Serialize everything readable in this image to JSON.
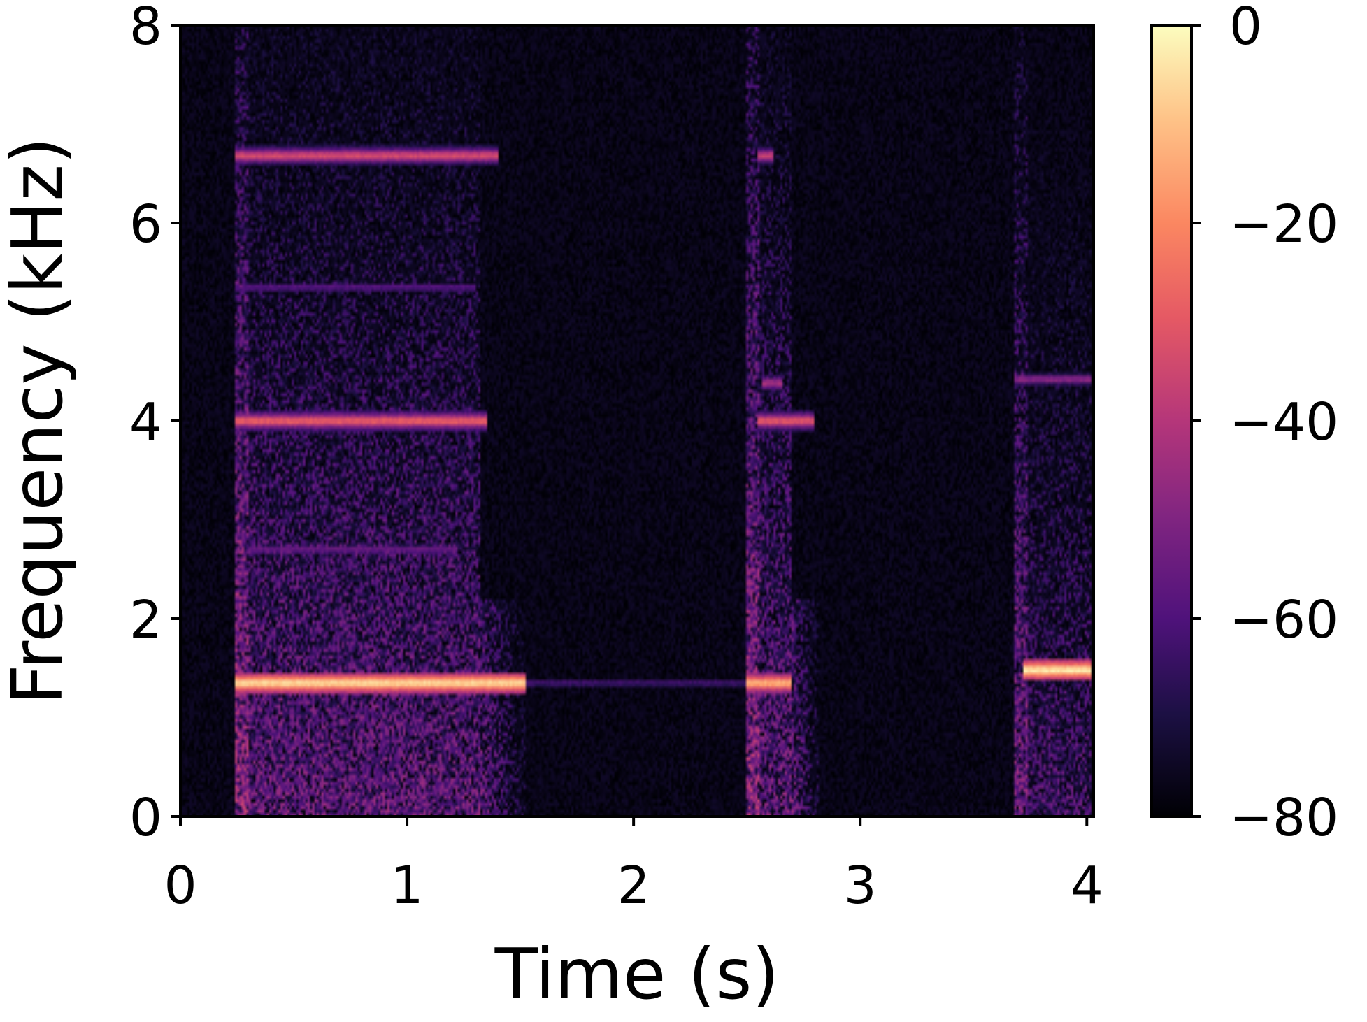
{
  "chart_data": {
    "type": "heatmap",
    "title": "",
    "xlabel": "Time (s)",
    "ylabel": "Frequency (kHz)",
    "xlim": [
      0,
      4.03
    ],
    "ylim": [
      0,
      8
    ],
    "x_ticks": [
      0,
      1,
      2,
      3,
      4
    ],
    "x_tick_labels": [
      "0",
      "1",
      "2",
      "3",
      "4"
    ],
    "y_ticks": [
      0,
      2,
      4,
      6,
      8
    ],
    "y_tick_labels": [
      "0",
      "2",
      "4",
      "6",
      "8"
    ],
    "colormap": "magma",
    "colorbar": {
      "range": [
        -80,
        0
      ],
      "ticks": [
        0,
        -20,
        -40,
        -60,
        -80
      ],
      "tick_labels": [
        "0",
        "−20",
        "−40",
        "−60",
        "−80"
      ]
    },
    "background_level_db": -80,
    "segments": [
      {
        "t_start": 0.24,
        "t_end": 1.32,
        "tail_end": 1.52,
        "base_db": -55
      },
      {
        "t_start": 2.5,
        "t_end": 2.7,
        "tail_end": 2.82,
        "base_db": -55
      },
      {
        "t_start": 3.68,
        "t_end": 4.02,
        "tail_end": 4.02,
        "base_db": -62
      }
    ],
    "harmonic_bands": [
      {
        "freq_khz": 1.35,
        "t_start": 0.24,
        "t_end": 1.52,
        "db": -5
      },
      {
        "freq_khz": 4.0,
        "t_start": 0.24,
        "t_end": 1.35,
        "db": -28
      },
      {
        "freq_khz": 6.68,
        "t_start": 0.24,
        "t_end": 1.4,
        "db": -33
      },
      {
        "freq_khz": 2.7,
        "t_start": 0.3,
        "t_end": 1.22,
        "db": -55
      },
      {
        "freq_khz": 5.35,
        "t_start": 0.24,
        "t_end": 1.3,
        "db": -58
      },
      {
        "freq_khz": 1.35,
        "t_start": 1.52,
        "t_end": 2.5,
        "db": -62
      },
      {
        "freq_khz": 1.35,
        "t_start": 2.5,
        "t_end": 2.7,
        "db": -12
      },
      {
        "freq_khz": 4.0,
        "t_start": 2.55,
        "t_end": 2.8,
        "db": -30
      },
      {
        "freq_khz": 4.38,
        "t_start": 2.57,
        "t_end": 2.66,
        "db": -42
      },
      {
        "freq_khz": 6.68,
        "t_start": 2.55,
        "t_end": 2.62,
        "db": -36
      },
      {
        "freq_khz": 1.48,
        "t_start": 3.72,
        "t_end": 4.02,
        "db": -3
      },
      {
        "freq_khz": 4.42,
        "t_start": 3.68,
        "t_end": 4.02,
        "db": -48
      }
    ]
  }
}
